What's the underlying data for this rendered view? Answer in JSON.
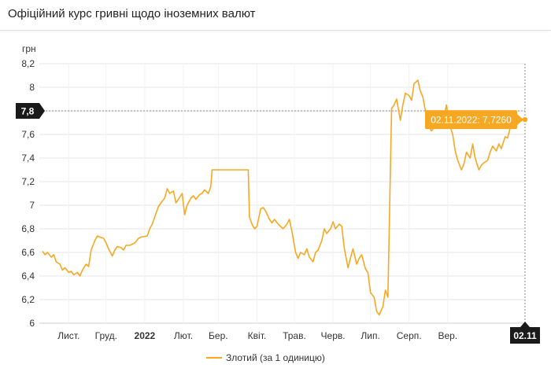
{
  "header": {
    "title": "Офіційний курс гривні щодо іноземних валют"
  },
  "colors": {
    "series": "#f7a823",
    "badge": "#f7a823",
    "grid": "#e6e6e6",
    "text": "#333333"
  },
  "chart_data": {
    "type": "line",
    "title": "",
    "ylabel": "грн",
    "ylim": [
      6,
      8.2
    ],
    "yticks": [
      "6",
      "6,2",
      "6,4",
      "6,6",
      "6,8",
      "7",
      "7,2",
      "7,4",
      "7,6",
      "7,8",
      "8",
      "8,2"
    ],
    "yticks_values": [
      6,
      6.2,
      6.4,
      6.6,
      6.8,
      7.0,
      7.2,
      7.4,
      7.6,
      7.8,
      8.0,
      8.2
    ],
    "xticks": [
      "Лист.",
      "Груд.",
      "2022",
      "Лют.",
      "Бер.",
      "Квіт.",
      "Трав.",
      "Черв.",
      "Лип.",
      "Серп.",
      "Вер."
    ],
    "xticks_bold": [
      "2022"
    ],
    "xlim": [
      "2021-10-11",
      "2022-11-02"
    ],
    "xticks_dates": [
      "2021-11-01",
      "2021-12-01",
      "2022-01-01",
      "2022-02-01",
      "2022-03-01",
      "2022-04-01",
      "2022-05-01",
      "2022-06-01",
      "2022-07-01",
      "2022-08-01",
      "2022-09-01"
    ],
    "series": [
      {
        "name": "Злотий (за 1 одиницю)",
        "points": [
          [
            "2021-10-11",
            6.61
          ],
          [
            "2021-10-13",
            6.58
          ],
          [
            "2021-10-15",
            6.6
          ],
          [
            "2021-10-18",
            6.56
          ],
          [
            "2021-10-20",
            6.58
          ],
          [
            "2021-10-22",
            6.52
          ],
          [
            "2021-10-25",
            6.5
          ],
          [
            "2021-10-27",
            6.45
          ],
          [
            "2021-10-29",
            6.47
          ],
          [
            "2021-11-01",
            6.43
          ],
          [
            "2021-11-03",
            6.44
          ],
          [
            "2021-11-05",
            6.41
          ],
          [
            "2021-11-08",
            6.43
          ],
          [
            "2021-11-10",
            6.4
          ],
          [
            "2021-11-12",
            6.45
          ],
          [
            "2021-11-15",
            6.5
          ],
          [
            "2021-11-17",
            6.48
          ],
          [
            "2021-11-19",
            6.62
          ],
          [
            "2021-11-22",
            6.7
          ],
          [
            "2021-11-24",
            6.74
          ],
          [
            "2021-11-26",
            6.73
          ],
          [
            "2021-11-29",
            6.72
          ],
          [
            "2021-12-01",
            6.68
          ],
          [
            "2021-12-03",
            6.63
          ],
          [
            "2021-12-06",
            6.57
          ],
          [
            "2021-12-08",
            6.62
          ],
          [
            "2021-12-10",
            6.65
          ],
          [
            "2021-12-13",
            6.64
          ],
          [
            "2021-12-15",
            6.62
          ],
          [
            "2021-12-17",
            6.66
          ],
          [
            "2021-12-20",
            6.66
          ],
          [
            "2021-12-22",
            6.67
          ],
          [
            "2021-12-24",
            6.68
          ],
          [
            "2021-12-27",
            6.72
          ],
          [
            "2021-12-29",
            6.73
          ],
          [
            "2022-01-03",
            6.74
          ],
          [
            "2022-01-05",
            6.8
          ],
          [
            "2022-01-07",
            6.84
          ],
          [
            "2022-01-10",
            6.93
          ],
          [
            "2022-01-12",
            6.99
          ],
          [
            "2022-01-14",
            7.02
          ],
          [
            "2022-01-17",
            7.06
          ],
          [
            "2022-01-19",
            7.14
          ],
          [
            "2022-01-21",
            7.1
          ],
          [
            "2022-01-24",
            7.12
          ],
          [
            "2022-01-26",
            7.02
          ],
          [
            "2022-01-28",
            7.05
          ],
          [
            "2022-01-31",
            7.1
          ],
          [
            "2022-02-02",
            6.92
          ],
          [
            "2022-02-04",
            7.0
          ],
          [
            "2022-02-07",
            7.06
          ],
          [
            "2022-02-09",
            7.08
          ],
          [
            "2022-02-11",
            7.05
          ],
          [
            "2022-02-14",
            7.09
          ],
          [
            "2022-02-16",
            7.1
          ],
          [
            "2022-02-18",
            7.13
          ],
          [
            "2022-02-21",
            7.1
          ],
          [
            "2022-02-23",
            7.16
          ],
          [
            "2022-02-24",
            7.3
          ],
          [
            "2022-03-01",
            7.3
          ],
          [
            "2022-03-15",
            7.3
          ],
          [
            "2022-03-25",
            7.3
          ],
          [
            "2022-03-26",
            6.9
          ],
          [
            "2022-03-28",
            6.84
          ],
          [
            "2022-03-30",
            6.8
          ],
          [
            "2022-04-01",
            6.82
          ],
          [
            "2022-04-04",
            6.97
          ],
          [
            "2022-04-06",
            6.98
          ],
          [
            "2022-04-08",
            6.95
          ],
          [
            "2022-04-11",
            6.88
          ],
          [
            "2022-04-13",
            6.85
          ],
          [
            "2022-04-15",
            6.88
          ],
          [
            "2022-04-18",
            6.84
          ],
          [
            "2022-04-20",
            6.82
          ],
          [
            "2022-04-22",
            6.8
          ],
          [
            "2022-04-25",
            6.84
          ],
          [
            "2022-04-27",
            6.88
          ],
          [
            "2022-04-29",
            6.78
          ],
          [
            "2022-05-02",
            6.6
          ],
          [
            "2022-05-04",
            6.55
          ],
          [
            "2022-05-06",
            6.6
          ],
          [
            "2022-05-09",
            6.58
          ],
          [
            "2022-05-11",
            6.63
          ],
          [
            "2022-05-13",
            6.56
          ],
          [
            "2022-05-16",
            6.52
          ],
          [
            "2022-05-18",
            6.6
          ],
          [
            "2022-05-20",
            6.62
          ],
          [
            "2022-05-23",
            6.7
          ],
          [
            "2022-05-25",
            6.8
          ],
          [
            "2022-05-27",
            6.76
          ],
          [
            "2022-05-30",
            6.8
          ],
          [
            "2022-06-01",
            6.86
          ],
          [
            "2022-06-03",
            6.8
          ],
          [
            "2022-06-06",
            6.84
          ],
          [
            "2022-06-08",
            6.82
          ],
          [
            "2022-06-10",
            6.64
          ],
          [
            "2022-06-13",
            6.47
          ],
          [
            "2022-06-15",
            6.55
          ],
          [
            "2022-06-17",
            6.63
          ],
          [
            "2022-06-20",
            6.5
          ],
          [
            "2022-06-22",
            6.55
          ],
          [
            "2022-06-24",
            6.58
          ],
          [
            "2022-06-27",
            6.46
          ],
          [
            "2022-06-29",
            6.43
          ],
          [
            "2022-07-01",
            6.26
          ],
          [
            "2022-07-04",
            6.22
          ],
          [
            "2022-07-06",
            6.1
          ],
          [
            "2022-07-08",
            6.07
          ],
          [
            "2022-07-11",
            6.14
          ],
          [
            "2022-07-13",
            6.28
          ],
          [
            "2022-07-15",
            6.22
          ],
          [
            "2022-07-18",
            7.82
          ],
          [
            "2022-07-20",
            7.85
          ],
          [
            "2022-07-22",
            7.9
          ],
          [
            "2022-07-25",
            7.72
          ],
          [
            "2022-07-27",
            7.85
          ],
          [
            "2022-07-29",
            7.95
          ],
          [
            "2022-08-01",
            7.93
          ],
          [
            "2022-08-03",
            7.89
          ],
          [
            "2022-08-05",
            8.03
          ],
          [
            "2022-08-08",
            8.06
          ],
          [
            "2022-08-10",
            7.97
          ],
          [
            "2022-08-12",
            7.92
          ],
          [
            "2022-08-15",
            7.75
          ],
          [
            "2022-08-17",
            7.66
          ],
          [
            "2022-08-19",
            7.63
          ],
          [
            "2022-08-22",
            7.67
          ],
          [
            "2022-08-24",
            7.7
          ],
          [
            "2022-08-26",
            7.7
          ],
          [
            "2022-08-29",
            7.75
          ],
          [
            "2022-08-31",
            7.85
          ],
          [
            "2022-09-02",
            7.7
          ],
          [
            "2022-09-05",
            7.6
          ],
          [
            "2022-09-07",
            7.46
          ],
          [
            "2022-09-09",
            7.38
          ],
          [
            "2022-09-12",
            7.3
          ],
          [
            "2022-09-14",
            7.35
          ],
          [
            "2022-09-16",
            7.45
          ],
          [
            "2022-09-19",
            7.4
          ],
          [
            "2022-09-21",
            7.52
          ],
          [
            "2022-09-23",
            7.4
          ],
          [
            "2022-09-26",
            7.3
          ],
          [
            "2022-09-28",
            7.34
          ],
          [
            "2022-09-30",
            7.36
          ],
          [
            "2022-10-03",
            7.38
          ],
          [
            "2022-10-05",
            7.45
          ],
          [
            "2022-10-07",
            7.5
          ],
          [
            "2022-10-10",
            7.46
          ],
          [
            "2022-10-12",
            7.52
          ],
          [
            "2022-10-14",
            7.48
          ],
          [
            "2022-10-17",
            7.58
          ],
          [
            "2022-10-19",
            7.57
          ],
          [
            "2022-10-21",
            7.65
          ],
          [
            "2022-10-24",
            7.68
          ],
          [
            "2022-10-26",
            7.7
          ],
          [
            "2022-10-28",
            7.72
          ],
          [
            "2022-10-31",
            7.71
          ],
          [
            "2022-11-02",
            7.726
          ]
        ]
      }
    ],
    "tooltip": {
      "date": "02.11.2022",
      "value": "7,7260",
      "text": "02.11.2022: 7,7260"
    },
    "crosshair": {
      "x_label": "02.11",
      "y_label": "7,8",
      "y_value": 7.8
    },
    "legend": {
      "label": "Злотий (за 1 одиницю)",
      "position": "bottom"
    },
    "grid": true
  }
}
